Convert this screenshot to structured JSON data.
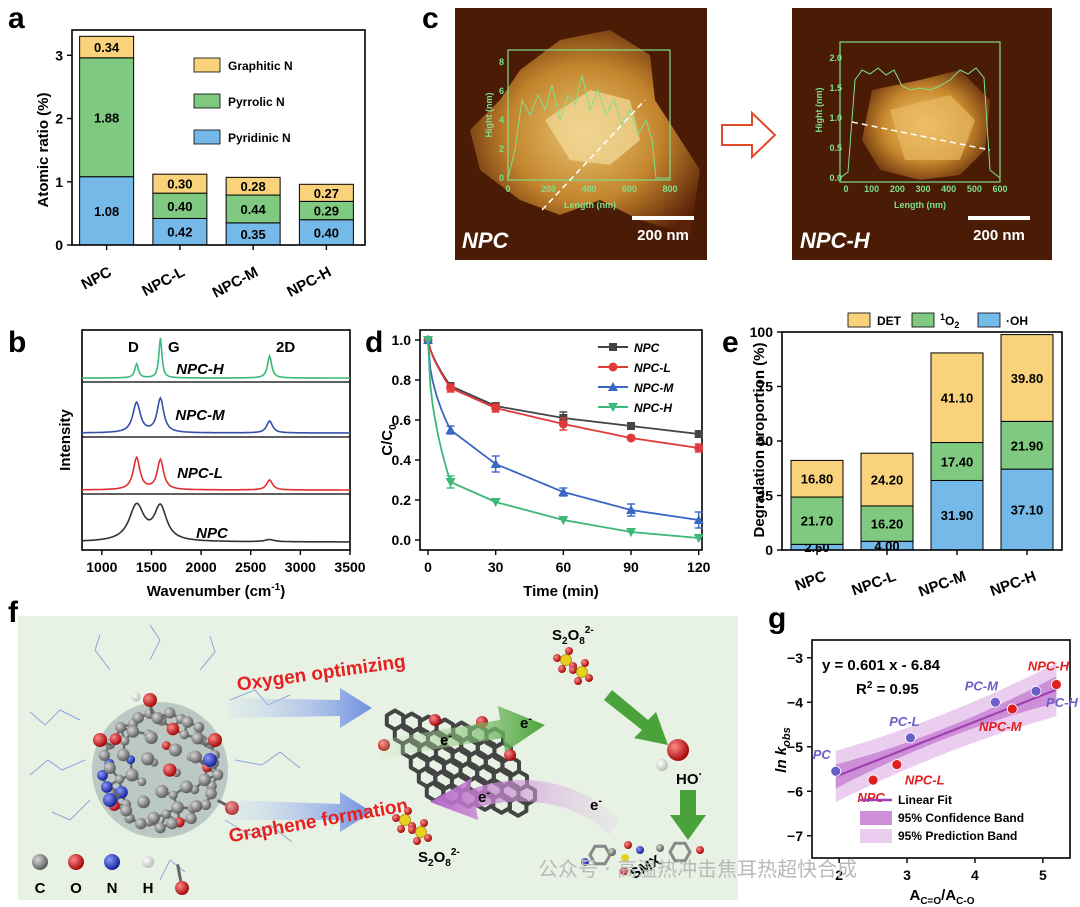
{
  "panels": {
    "a": "a",
    "b": "b",
    "c": "c",
    "d": "d",
    "e": "e",
    "f": "f",
    "g": "g"
  },
  "watermark": "公众号 · 高温热冲击焦耳热超快合成",
  "colors": {
    "graphitic": "#f9d27b",
    "pyrrolic": "#7fc980",
    "pyridinic": "#75b9e8"
  },
  "chart_data": [
    {
      "id": "a",
      "type": "bar",
      "stacked": true,
      "categories": [
        "NPC",
        "NPC-L",
        "NPC-M",
        "NPC-H"
      ],
      "series": [
        {
          "name": "Pyridinic N",
          "values": [
            1.08,
            0.42,
            0.35,
            0.4
          ],
          "labels": [
            "1.08",
            "0.42",
            "0.35",
            "0.40"
          ],
          "color": "#75b9e8"
        },
        {
          "name": "Pyrrolic N",
          "values": [
            1.88,
            0.4,
            0.44,
            0.29
          ],
          "labels": [
            "1.88",
            "0.40",
            "0.44",
            "0.29"
          ],
          "color": "#7fc980"
        },
        {
          "name": "Graphitic N",
          "values": [
            0.34,
            0.3,
            0.28,
            0.27
          ],
          "labels": [
            "0.34",
            "0.30",
            "0.28",
            "0.27"
          ],
          "color": "#f9d27b"
        }
      ],
      "legend": [
        "Graphitic N",
        "Pyrrolic N",
        "Pyridinic N"
      ],
      "ylabel": "Atomic ratio (%)",
      "ylim": [
        0,
        3.4
      ],
      "yticks": [
        0,
        1,
        2,
        3
      ],
      "ytick_labels": [
        "0",
        "1",
        "2",
        "3"
      ]
    },
    {
      "id": "b",
      "type": "line",
      "title": "",
      "xlabel": "Wavenumber (cm",
      "xlabel_sup": "-1",
      "xlabel_end": ")",
      "ylabel": "Intensity",
      "xlim": [
        800,
        3500
      ],
      "xticks": [
        1000,
        1500,
        2000,
        2500,
        3000,
        3500
      ],
      "xtick_labels": [
        "1000",
        "1500",
        "2000",
        "2500",
        "3000",
        "3500"
      ],
      "peak_labels": [
        "D",
        "G",
        "2D"
      ],
      "series": [
        {
          "name": "NPC-H",
          "color": "#3cb878"
        },
        {
          "name": "NPC-M",
          "color": "#3550a8"
        },
        {
          "name": "NPC-L",
          "color": "#e03030"
        },
        {
          "name": "NPC",
          "color": "#333333"
        }
      ]
    },
    {
      "id": "c",
      "type": "heatmap",
      "images": [
        {
          "name": "NPC",
          "scale": "200 nm",
          "xlabel": "Length (nm)",
          "ylabel": "Hight (nm)",
          "xticks": [
            "0",
            "200",
            "400",
            "600",
            "800"
          ],
          "yticks": [
            "0",
            "2",
            "4",
            "6",
            "8"
          ]
        },
        {
          "name": "NPC-H",
          "scale": "200 nm",
          "xlabel": "Length (nm)",
          "ylabel": "Hight (nm)",
          "xticks": [
            "0",
            "100",
            "200",
            "300",
            "400",
            "500",
            "600"
          ],
          "yticks": [
            "0.0",
            "0.5",
            "1.0",
            "1.5",
            "2.0"
          ]
        }
      ]
    },
    {
      "id": "d",
      "type": "line",
      "xlabel": "Time (min)",
      "ylabel": "C/C",
      "ylabel_sub": "0",
      "xlim": [
        0,
        125
      ],
      "ylim": [
        -0.05,
        1.05
      ],
      "xticks": [
        0,
        30,
        60,
        90,
        120
      ],
      "xtick_labels": [
        "0",
        "30",
        "60",
        "90",
        "120"
      ],
      "yticks": [
        0,
        0.2,
        0.4,
        0.6,
        0.8,
        1.0
      ],
      "ytick_labels": [
        "0.0",
        "0.2",
        "0.4",
        "0.6",
        "0.8",
        "1.0"
      ],
      "series": [
        {
          "name": "NPC",
          "color": "#444444",
          "x": [
            0,
            10,
            30,
            60,
            90,
            120
          ],
          "y": [
            1.0,
            0.77,
            0.67,
            0.61,
            0.57,
            0.53
          ],
          "err": [
            0,
            0,
            0,
            0.03,
            0,
            0
          ]
        },
        {
          "name": "NPC-L",
          "color": "#e03a3a",
          "x": [
            0,
            10,
            30,
            60,
            90,
            120
          ],
          "y": [
            1.0,
            0.76,
            0.66,
            0.58,
            0.51,
            0.46
          ],
          "err": [
            0,
            0.02,
            0.02,
            0.03,
            0.01,
            0.02
          ]
        },
        {
          "name": "NPC-M",
          "color": "#3a66c4",
          "x": [
            0,
            10,
            30,
            60,
            90,
            120
          ],
          "y": [
            1.0,
            0.55,
            0.38,
            0.24,
            0.15,
            0.1
          ],
          "err": [
            0,
            0.02,
            0.04,
            0.02,
            0.03,
            0.04
          ]
        },
        {
          "name": "NPC-H",
          "color": "#3cb878",
          "x": [
            0,
            10,
            30,
            60,
            90,
            120
          ],
          "y": [
            1.0,
            0.29,
            0.19,
            0.1,
            0.04,
            0.01
          ],
          "err": [
            0,
            0.03,
            0,
            0,
            0,
            0
          ]
        }
      ]
    },
    {
      "id": "e",
      "type": "bar",
      "stacked": true,
      "categories": [
        "NPC",
        "NPC-L",
        "NPC-M",
        "NPC-H"
      ],
      "series": [
        {
          "name": "·OH",
          "values": [
            2.6,
            4.0,
            31.9,
            37.1
          ],
          "labels": [
            "2.60",
            "4.00",
            "31.90",
            "37.10"
          ],
          "color": "#75b9e8"
        },
        {
          "name": "1O2",
          "values": [
            21.7,
            16.2,
            17.4,
            21.9
          ],
          "labels": [
            "21.70",
            "16.20",
            "17.40",
            "21.90"
          ],
          "color": "#7fc980"
        },
        {
          "name": "DET",
          "values": [
            16.8,
            24.2,
            41.1,
            39.8
          ],
          "labels": [
            "16.80",
            "24.20",
            "41.10",
            "39.80"
          ],
          "color": "#f9d27b"
        }
      ],
      "legend": [
        "DET",
        "1O2",
        "·OH"
      ],
      "legend_text": {
        "det": "DET",
        "o2_pre": "1",
        "o2_main": "O",
        "o2_sub": "2",
        "oh": "·OH"
      },
      "ylabel": "Degradation proportion (%)",
      "ylim": [
        0,
        100
      ],
      "yticks": [
        0,
        25,
        50,
        75,
        100
      ],
      "ytick_labels": [
        "0",
        "25",
        "50",
        "75",
        "100"
      ]
    },
    {
      "id": "g",
      "type": "scatter",
      "xlabel": "A",
      "xlabel_sub1": "C=O",
      "xlabel_mid": "/A",
      "xlabel_sub2": "C-O",
      "ylabel": "ln k",
      "ylabel_sub": "obs",
      "xlim": [
        1.6,
        5.4
      ],
      "ylim": [
        -7.5,
        -2.6
      ],
      "xticks": [
        2,
        3,
        4,
        5
      ],
      "xtick_labels": [
        "2",
        "3",
        "4",
        "5"
      ],
      "yticks": [
        -7,
        -6,
        -5,
        -4,
        -3
      ],
      "ytick_labels": [
        "−7",
        "−6",
        "−5",
        "−4",
        "−3"
      ],
      "equation": "y = 0.601 x - 6.84",
      "r2": "R",
      "r2_sup": "2",
      "r2_val": " = 0.95",
      "fit": {
        "slope": 0.601,
        "intercept": -6.84
      },
      "series": [
        {
          "name": "NPC series",
          "color": "#e02020",
          "points": [
            {
              "label": "NPC",
              "x": 2.5,
              "y": -5.75
            },
            {
              "label": "NPC-L",
              "x": 2.85,
              "y": -5.4
            },
            {
              "label": "NPC-M",
              "x": 4.55,
              "y": -4.15
            },
            {
              "label": "NPC-H",
              "x": 5.2,
              "y": -3.6
            }
          ]
        },
        {
          "name": "PC series",
          "color": "#6a5fc8",
          "points": [
            {
              "label": "PC",
              "x": 1.95,
              "y": -5.55
            },
            {
              "label": "PC-L",
              "x": 3.05,
              "y": -4.8
            },
            {
              "label": "PC-M",
              "x": 4.3,
              "y": -4.0
            },
            {
              "label": "PC-H",
              "x": 4.9,
              "y": -3.75
            }
          ]
        }
      ],
      "legend": [
        "Linear Fit",
        "95% Confidence Band",
        "95% Prediction Band"
      ]
    }
  ],
  "diagram_f": {
    "oxygen_label": "Oxygen optimizing",
    "graphene_label": "Graphene formation",
    "electron": "e",
    "electron_sup": "-",
    "s2o8_main": "S",
    "s2o8_sub1": "2",
    "s2o8_o": "O",
    "s2o8_sub2": "8",
    "s2o8_sup": "2-",
    "ho": "HO",
    "ho_sup": "·",
    "smx": "SMX",
    "atoms": [
      {
        "label": "C",
        "color": "#8a8a8a"
      },
      {
        "label": "O",
        "color": "#e01010"
      },
      {
        "label": "N",
        "color": "#2030c0"
      },
      {
        "label": "H",
        "color": "#e8e8e8"
      }
    ]
  }
}
